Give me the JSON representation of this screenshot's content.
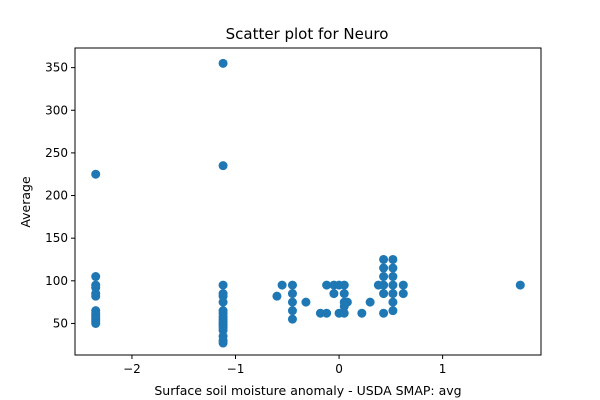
{
  "chart_data": {
    "type": "scatter",
    "title": "Scatter plot for Neuro",
    "xlabel": "Surface soil moisture anomaly  - USDA SMAP: avg",
    "ylabel": "Average",
    "xlim": [
      -2.55,
      1.95
    ],
    "ylim": [
      13,
      373
    ],
    "xticks": [
      -2,
      -1,
      0,
      1
    ],
    "xtick_labels": [
      "−2",
      "−1",
      "0",
      "1"
    ],
    "yticks": [
      50,
      100,
      150,
      200,
      250,
      300,
      350
    ],
    "ytick_labels": [
      "50",
      "100",
      "150",
      "200",
      "250",
      "300",
      "350"
    ],
    "grid": false,
    "marker_color": "#1f77b4",
    "series": [
      {
        "points": [
          [
            -2.35,
            225
          ],
          [
            -2.35,
            105
          ],
          [
            -2.35,
            95
          ],
          [
            -2.35,
            92
          ],
          [
            -2.35,
            85
          ],
          [
            -2.35,
            82
          ],
          [
            -2.35,
            65
          ],
          [
            -2.35,
            62
          ],
          [
            -2.35,
            60
          ],
          [
            -2.35,
            58
          ],
          [
            -2.35,
            56
          ],
          [
            -2.35,
            54
          ],
          [
            -2.35,
            52
          ],
          [
            -2.35,
            50
          ],
          [
            -1.12,
            355
          ],
          [
            -1.12,
            235
          ],
          [
            -1.12,
            95
          ],
          [
            -1.12,
            85
          ],
          [
            -1.12,
            82
          ],
          [
            -1.12,
            75
          ],
          [
            -1.12,
            65
          ],
          [
            -1.12,
            62
          ],
          [
            -1.12,
            58
          ],
          [
            -1.12,
            55
          ],
          [
            -1.12,
            52
          ],
          [
            -1.12,
            50
          ],
          [
            -1.12,
            48
          ],
          [
            -1.12,
            45
          ],
          [
            -1.12,
            42
          ],
          [
            -1.12,
            35
          ],
          [
            -1.12,
            30
          ],
          [
            -1.12,
            27
          ],
          [
            -0.6,
            82
          ],
          [
            -0.55,
            95
          ],
          [
            -0.45,
            95
          ],
          [
            -0.45,
            85
          ],
          [
            -0.45,
            75
          ],
          [
            -0.45,
            65
          ],
          [
            -0.45,
            55
          ],
          [
            -0.32,
            75
          ],
          [
            -0.18,
            62
          ],
          [
            -0.12,
            95
          ],
          [
            -0.12,
            62
          ],
          [
            -0.05,
            95
          ],
          [
            -0.05,
            85
          ],
          [
            0.0,
            95
          ],
          [
            0.0,
            62
          ],
          [
            0.05,
            95
          ],
          [
            0.05,
            85
          ],
          [
            0.05,
            75
          ],
          [
            0.05,
            70
          ],
          [
            0.05,
            62
          ],
          [
            0.08,
            75
          ],
          [
            0.22,
            62
          ],
          [
            0.3,
            75
          ],
          [
            0.38,
            95
          ],
          [
            0.43,
            125
          ],
          [
            0.43,
            115
          ],
          [
            0.43,
            105
          ],
          [
            0.43,
            95
          ],
          [
            0.43,
            85
          ],
          [
            0.43,
            62
          ],
          [
            0.52,
            125
          ],
          [
            0.52,
            115
          ],
          [
            0.52,
            105
          ],
          [
            0.52,
            95
          ],
          [
            0.52,
            85
          ],
          [
            0.52,
            75
          ],
          [
            0.52,
            65
          ],
          [
            0.62,
            95
          ],
          [
            0.62,
            85
          ],
          [
            1.75,
            95
          ]
        ]
      }
    ]
  }
}
